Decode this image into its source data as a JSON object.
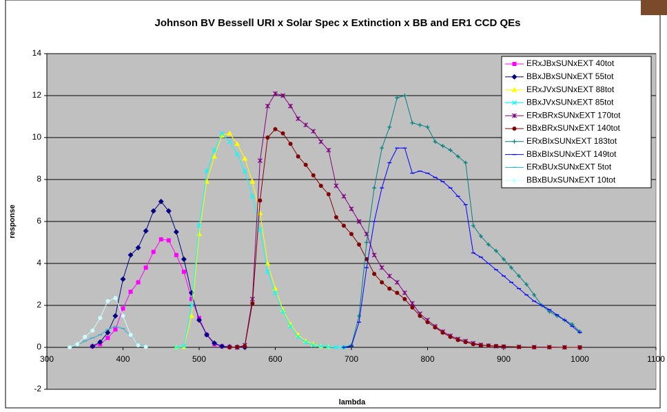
{
  "chart_data": {
    "type": "line",
    "title": "Johnson BV Bessell URI x Solar Spec x Extinction x BB and ER1 CCD QEs",
    "x_label": "lambda",
    "y_label": "response",
    "xlim": [
      300,
      1100
    ],
    "xticks": [
      300,
      400,
      500,
      600,
      700,
      800,
      900,
      1000,
      1100
    ],
    "ylim": [
      -2,
      14
    ],
    "yticks": [
      -2,
      0,
      2,
      4,
      6,
      8,
      10,
      12,
      14
    ],
    "grid": true,
    "legend": "upper right",
    "background": "#c0c0c0",
    "series": [
      {
        "name": "ERxJBxSUNxEXT 40tot",
        "color": "#ff00ff",
        "marker": "square",
        "x": [
          360,
          370,
          380,
          390,
          400,
          410,
          420,
          430,
          440,
          450,
          460,
          470,
          480,
          490,
          500,
          510,
          520,
          530,
          540
        ],
        "values": [
          0.05,
          0.15,
          0.45,
          0.85,
          1.85,
          2.65,
          3.1,
          3.8,
          4.55,
          5.15,
          5.1,
          4.4,
          3.6,
          2.3,
          1.4,
          0.6,
          0.15,
          0.05,
          0.02
        ]
      },
      {
        "name": "BBxJBxSUNxEXT 55tot",
        "color": "#000080",
        "marker": "diamond",
        "x": [
          360,
          370,
          380,
          390,
          400,
          410,
          420,
          430,
          440,
          450,
          460,
          470,
          480,
          490,
          500,
          510,
          520,
          530,
          540,
          550,
          560
        ],
        "values": [
          0.05,
          0.25,
          0.7,
          1.5,
          3.25,
          4.4,
          4.75,
          5.55,
          6.5,
          6.95,
          6.5,
          5.5,
          4.2,
          2.6,
          1.3,
          0.6,
          0.2,
          0.05,
          0.02,
          0.01,
          0
        ]
      },
      {
        "name": "ERxJVxSUNxEXT 88tot",
        "color": "#ffff00",
        "marker": "triangle",
        "x": [
          470,
          480,
          490,
          500,
          510,
          520,
          530,
          540,
          550,
          560,
          570,
          580,
          590,
          600,
          610,
          620,
          630,
          640,
          650,
          660,
          670
        ],
        "values": [
          0,
          0.02,
          1.5,
          5.4,
          7.9,
          9.1,
          10.1,
          10.2,
          9.7,
          9.0,
          7.9,
          6.4,
          4.0,
          2.8,
          1.8,
          1.1,
          0.6,
          0.3,
          0.15,
          0.05,
          0.02
        ]
      },
      {
        "name": "BBxJVxSUNxEXT 85tot",
        "color": "#00ffff",
        "marker": "x",
        "x": [
          470,
          480,
          490,
          500,
          510,
          520,
          530,
          540,
          550,
          560,
          570,
          580,
          590,
          600,
          610,
          620,
          630,
          640,
          650,
          660,
          670,
          680,
          690
        ],
        "values": [
          0,
          0.05,
          2.0,
          5.8,
          8.4,
          9.4,
          10.2,
          9.8,
          9.2,
          8.4,
          7.2,
          5.6,
          3.6,
          2.6,
          1.7,
          1.0,
          0.5,
          0.25,
          0.1,
          0.05,
          0.02,
          0,
          0
        ]
      },
      {
        "name": "ERxBRxSUNxEXT 170tot",
        "color": "#800080",
        "marker": "star",
        "x": [
          550,
          560,
          570,
          580,
          590,
          600,
          610,
          620,
          630,
          640,
          650,
          660,
          670,
          680,
          690,
          700,
          710,
          720,
          730,
          740,
          750,
          760,
          770,
          780,
          790,
          800,
          810,
          820,
          830,
          840,
          850,
          860,
          870,
          880,
          890,
          900,
          920,
          940,
          960,
          980,
          1000
        ],
        "values": [
          0,
          0.1,
          2.3,
          8.9,
          11.5,
          12.1,
          12.0,
          11.5,
          10.9,
          10.6,
          10.3,
          9.8,
          9.4,
          7.7,
          7.2,
          6.6,
          6.0,
          5.4,
          4.4,
          3.8,
          3.4,
          3.1,
          2.6,
          2.1,
          1.6,
          1.3,
          1.0,
          0.75,
          0.55,
          0.4,
          0.3,
          0.2,
          0.12,
          0.08,
          0.05,
          0.03,
          0.02,
          0.01,
          0.01,
          0,
          0
        ]
      },
      {
        "name": "BBxBRxSUNxEXT 140tot",
        "color": "#800000",
        "marker": "circle",
        "x": [
          540,
          550,
          560,
          570,
          580,
          590,
          600,
          610,
          620,
          630,
          640,
          650,
          660,
          670,
          680,
          690,
          700,
          710,
          720,
          730,
          740,
          750,
          760,
          770,
          780,
          790,
          800,
          810,
          820,
          830,
          840,
          850,
          860,
          870,
          880,
          890,
          900,
          920,
          940,
          960,
          980,
          1000
        ],
        "values": [
          0,
          0.02,
          0.05,
          2.1,
          7.0,
          10.0,
          10.4,
          10.2,
          9.7,
          9.1,
          8.7,
          8.2,
          7.7,
          7.3,
          6.2,
          5.8,
          5.4,
          4.9,
          4.2,
          3.5,
          3.1,
          2.8,
          2.6,
          2.3,
          1.9,
          1.5,
          1.2,
          0.95,
          0.7,
          0.5,
          0.35,
          0.25,
          0.15,
          0.1,
          0.08,
          0.06,
          0.04,
          0.02,
          0.01,
          0.01,
          0,
          0
        ]
      },
      {
        "name": "ERxBIxSUNxEXT 183tot",
        "color": "#008080",
        "marker": "plus",
        "x": [
          690,
          700,
          710,
          720,
          730,
          740,
          750,
          760,
          770,
          780,
          790,
          800,
          810,
          820,
          830,
          840,
          850,
          860,
          870,
          880,
          890,
          900,
          910,
          920,
          930,
          940,
          950,
          960,
          970,
          980,
          990,
          1000
        ],
        "values": [
          0,
          0.1,
          1.5,
          5.0,
          7.6,
          9.5,
          10.5,
          11.9,
          12.0,
          10.7,
          10.6,
          10.5,
          9.8,
          9.6,
          9.4,
          9.1,
          8.8,
          5.8,
          5.3,
          4.9,
          4.6,
          4.2,
          3.8,
          3.4,
          3.0,
          2.5,
          2.0,
          1.7,
          1.5,
          1.3,
          1.1,
          0.75
        ]
      },
      {
        "name": "BBxBIxSUNxEXT 149tot",
        "color": "#0000ff",
        "marker": "dash",
        "x": [
          690,
          700,
          710,
          720,
          730,
          740,
          750,
          760,
          770,
          780,
          790,
          800,
          810,
          820,
          830,
          840,
          850,
          860,
          870,
          880,
          890,
          900,
          910,
          920,
          930,
          940,
          950,
          960,
          970,
          980,
          990,
          1000
        ],
        "values": [
          0,
          0.05,
          1.2,
          3.8,
          6.0,
          7.6,
          8.8,
          9.5,
          9.5,
          8.3,
          8.4,
          8.3,
          8.1,
          7.9,
          7.6,
          7.2,
          6.8,
          4.5,
          4.3,
          4.0,
          3.7,
          3.4,
          3.1,
          2.8,
          2.5,
          2.2,
          2.0,
          1.8,
          1.55,
          1.3,
          1.0,
          0.7
        ]
      },
      {
        "name": "ERxBUxSUNxEXT 5tot",
        "color": "#33aacc",
        "marker": "dash",
        "x": [
          330,
          340,
          350,
          360,
          370,
          380,
          390,
          400,
          410,
          420,
          430
        ],
        "values": [
          0,
          0.1,
          0.3,
          0.45,
          0.6,
          0.85,
          1.0,
          0.9,
          0.55,
          0.15,
          0.02
        ]
      },
      {
        "name": "BBxBUxSUNxEXT 10tot",
        "color": "#ccffff",
        "marker": "circle",
        "x": [
          330,
          340,
          350,
          360,
          370,
          380,
          390,
          400,
          410,
          420,
          430
        ],
        "values": [
          0,
          0.15,
          0.5,
          0.8,
          1.4,
          2.2,
          2.35,
          1.5,
          0.6,
          0.1,
          0.02
        ]
      }
    ]
  }
}
